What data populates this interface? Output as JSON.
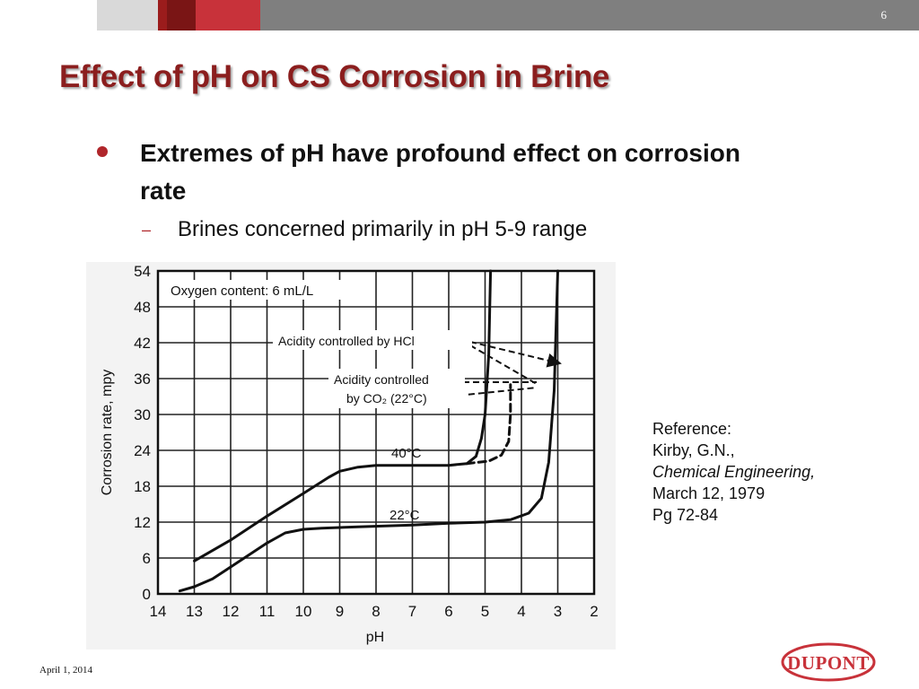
{
  "header": {
    "slide_number": "6"
  },
  "title": "Effect of pH on CS Corrosion in Brine",
  "bullets": [
    {
      "text": "Extremes of pH have profound effect on corrosion rate",
      "sub": [
        "Brines concerned primarily in pH 5-9 range"
      ]
    }
  ],
  "chart_data": {
    "type": "line",
    "xlabel": "pH",
    "ylabel": "Corrosion rate, mpy",
    "x_ticks": [
      14,
      13,
      12,
      11,
      10,
      9,
      8,
      7,
      6,
      5,
      4,
      3,
      2
    ],
    "y_ticks": [
      0,
      6,
      12,
      18,
      24,
      30,
      36,
      42,
      48,
      54
    ],
    "xlim": [
      14,
      2
    ],
    "ylim": [
      0,
      54
    ],
    "x_reversed": true,
    "grid": true,
    "annotations": {
      "oxygen": "Oxygen content: 6 mL/L",
      "hcl": "Acidity controlled by HCl",
      "co2_line1": "Acidity controlled",
      "co2_line2": "by CO₂ (22°C)",
      "label_40": "40°C",
      "label_22": "22°C"
    },
    "series": [
      {
        "name": "40°C",
        "style": "solid",
        "points": [
          [
            13.0,
            5.5
          ],
          [
            12.0,
            9
          ],
          [
            11.0,
            13
          ],
          [
            10.0,
            16.8
          ],
          [
            9.3,
            19.5
          ],
          [
            9.0,
            20.5
          ],
          [
            8.5,
            21.2
          ],
          [
            8.0,
            21.5
          ],
          [
            7.0,
            21.5
          ],
          [
            6.0,
            21.5
          ],
          [
            5.5,
            21.8
          ],
          [
            5.25,
            23
          ],
          [
            5.1,
            26
          ],
          [
            5.0,
            30
          ],
          [
            4.9,
            40
          ],
          [
            4.85,
            54
          ]
        ]
      },
      {
        "name": "22°C",
        "style": "solid",
        "points": [
          [
            13.4,
            0.5
          ],
          [
            13.0,
            1.2
          ],
          [
            12.5,
            2.5
          ],
          [
            12.0,
            4.5
          ],
          [
            11.0,
            8.5
          ],
          [
            10.5,
            10.2
          ],
          [
            10.0,
            10.8
          ],
          [
            9.5,
            11.0
          ],
          [
            8.5,
            11.2
          ],
          [
            7.0,
            11.5
          ],
          [
            6.0,
            11.8
          ],
          [
            5.0,
            12.0
          ],
          [
            4.3,
            12.4
          ],
          [
            3.8,
            13.5
          ],
          [
            3.45,
            16
          ],
          [
            3.25,
            22
          ],
          [
            3.1,
            34
          ],
          [
            3.0,
            54
          ]
        ]
      },
      {
        "name": "Acidity controlled by CO₂ (22°C)",
        "style": "dashed",
        "points": [
          [
            5.5,
            21.8
          ],
          [
            4.9,
            22.2
          ],
          [
            4.55,
            23.2
          ],
          [
            4.35,
            25.5
          ],
          [
            4.3,
            30
          ],
          [
            4.3,
            35
          ]
        ]
      }
    ]
  },
  "reference": {
    "label": "Reference:",
    "author": "Kirby, G.N.,",
    "journal": "Chemical Engineering,",
    "date": "March 12, 1979",
    "pages": "Pg 72-84"
  },
  "footer": {
    "date": "April 1, 2014",
    "logo_text": "DUPONT"
  }
}
